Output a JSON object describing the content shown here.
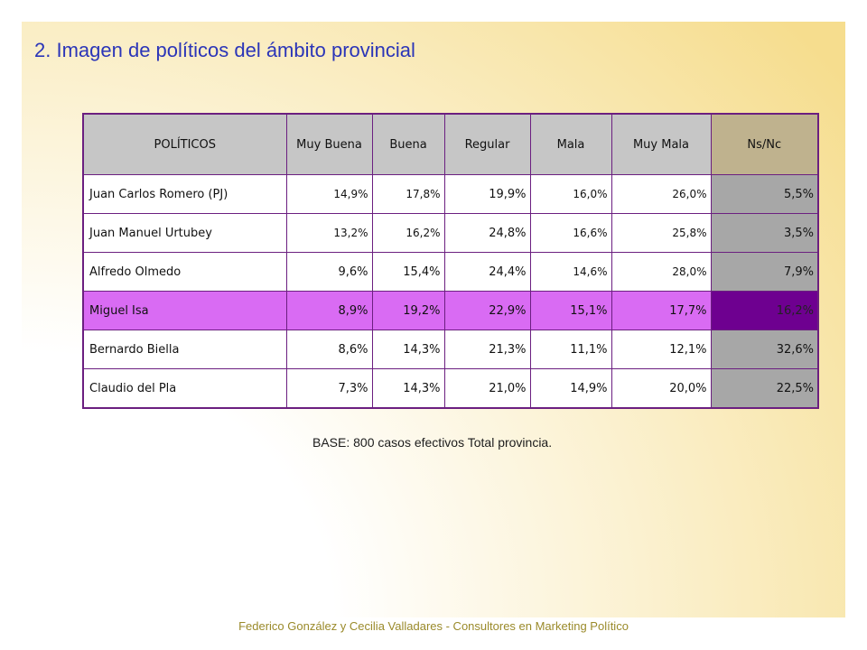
{
  "title": "2. Imagen de políticos del ámbito provincial",
  "table": {
    "headers": [
      "POLÍTICOS",
      "Muy Buena",
      "Buena",
      "Regular",
      "Mala",
      "Muy Mala",
      "Ns/Nc"
    ],
    "rows": [
      [
        "Juan Carlos Romero (PJ)",
        "14,9%",
        "17,8%",
        "19,9%",
        "16,0%",
        "26,0%",
        "5,5%"
      ],
      [
        "Juan Manuel Urtubey",
        "13,2%",
        "16,2%",
        "24,8%",
        "16,6%",
        "25,8%",
        "3,5%"
      ],
      [
        "Alfredo Olmedo",
        "9,6%",
        "15,4%",
        "24,4%",
        "14,6%",
        "28,0%",
        "7,9%"
      ],
      [
        "Miguel Isa",
        "8,9%",
        "19,2%",
        "22,9%",
        "15,1%",
        "17,7%",
        "16,2%"
      ],
      [
        "Bernardo Biella",
        "8,6%",
        "14,3%",
        "21,3%",
        "11,1%",
        "12,1%",
        "32,6%"
      ],
      [
        "Claudio del Pla",
        "7,3%",
        "14,3%",
        "21,0%",
        "14,9%",
        "20,0%",
        "22,5%"
      ]
    ]
  },
  "base_note": "BASE: 800 casos efectivos Total provincia.",
  "footer": "Federico González y Cecilia Valladares - Consultores en Marketing Político"
}
